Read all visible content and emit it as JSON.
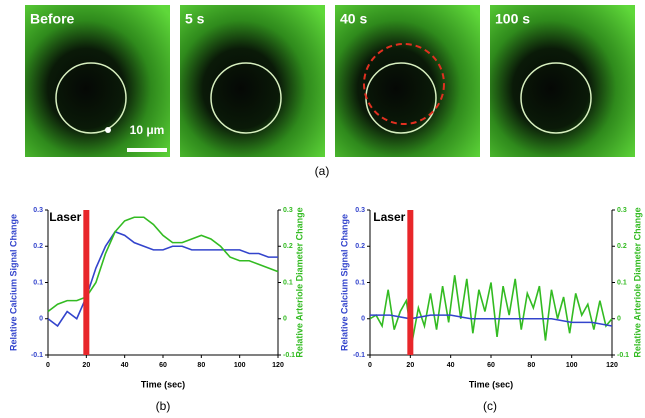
{
  "images": [
    {
      "label": "Before"
    },
    {
      "label": "5 s"
    },
    {
      "label": "40 s"
    },
    {
      "label": "100 s"
    }
  ],
  "scale_bar": "10 μm",
  "panel_a_label": "(a)",
  "chart_data": [
    {
      "type": "line",
      "panel_label": "(b)",
      "annotation": "Laser",
      "laser_x": 20,
      "xlabel": "Time (sec)",
      "ylabel": "Relative Calcium Signal Change",
      "y2label": "Relative Arteriole Diameter Change",
      "xlim": [
        0,
        120
      ],
      "xticks": [
        0,
        20,
        40,
        60,
        80,
        100,
        120
      ],
      "ylim": [
        -0.1,
        0.3
      ],
      "yticks": [
        -0.1,
        0,
        0.1,
        0.2,
        0.3
      ],
      "y2lim": [
        -0.1,
        0.3
      ],
      "y2ticks": [
        -0.1,
        0,
        0.1,
        0.2,
        0.3
      ],
      "series": [
        {
          "color": "#3344cc",
          "axis": "y",
          "x": [
            0,
            5,
            10,
            15,
            20,
            25,
            30,
            35,
            40,
            45,
            50,
            55,
            60,
            65,
            70,
            75,
            80,
            85,
            90,
            95,
            100,
            105,
            110,
            115,
            120
          ],
          "values": [
            0.0,
            -0.02,
            0.02,
            0.0,
            0.06,
            0.14,
            0.2,
            0.24,
            0.23,
            0.21,
            0.2,
            0.19,
            0.19,
            0.2,
            0.2,
            0.19,
            0.19,
            0.19,
            0.19,
            0.19,
            0.19,
            0.18,
            0.18,
            0.17,
            0.17
          ]
        },
        {
          "color": "#33bb22",
          "axis": "y2",
          "x": [
            0,
            5,
            10,
            15,
            20,
            25,
            30,
            35,
            40,
            45,
            50,
            55,
            60,
            65,
            70,
            75,
            80,
            85,
            90,
            95,
            100,
            105,
            110,
            115,
            120
          ],
          "values": [
            0.02,
            0.04,
            0.05,
            0.05,
            0.06,
            0.1,
            0.18,
            0.24,
            0.27,
            0.28,
            0.28,
            0.26,
            0.23,
            0.21,
            0.21,
            0.22,
            0.23,
            0.22,
            0.2,
            0.17,
            0.16,
            0.16,
            0.15,
            0.14,
            0.13
          ]
        }
      ]
    },
    {
      "type": "line",
      "panel_label": "(c)",
      "annotation": "Laser",
      "laser_x": 20,
      "xlabel": "Time (sec)",
      "ylabel": "Relative Calcium Signal Change",
      "y2label": "Relative Arteriole Diameter Change",
      "xlim": [
        0,
        120
      ],
      "xticks": [
        0,
        20,
        40,
        60,
        80,
        100,
        120
      ],
      "ylim": [
        -0.1,
        0.3
      ],
      "yticks": [
        -0.1,
        0,
        0.1,
        0.2,
        0.3
      ],
      "y2lim": [
        -0.1,
        0.3
      ],
      "y2ticks": [
        -0.1,
        0,
        0.1,
        0.2,
        0.3
      ],
      "series": [
        {
          "color": "#33bb22",
          "axis": "y2",
          "x": [
            0,
            3,
            6,
            9,
            12,
            15,
            18,
            21,
            24,
            27,
            30,
            33,
            36,
            39,
            42,
            45,
            48,
            51,
            54,
            57,
            60,
            63,
            66,
            69,
            72,
            75,
            78,
            81,
            84,
            87,
            90,
            93,
            96,
            99,
            102,
            105,
            108,
            111,
            114,
            117,
            120
          ],
          "values": [
            0.0,
            0.01,
            -0.02,
            0.08,
            -0.03,
            0.02,
            0.05,
            -0.06,
            0.03,
            -0.02,
            0.07,
            -0.03,
            0.09,
            -0.01,
            0.12,
            0.0,
            0.11,
            -0.04,
            0.08,
            0.02,
            0.1,
            -0.05,
            0.09,
            0.01,
            0.11,
            -0.03,
            0.07,
            0.03,
            0.09,
            -0.06,
            0.08,
            0.0,
            0.06,
            -0.04,
            0.07,
            0.01,
            0.04,
            -0.03,
            0.05,
            -0.02,
            0.0
          ]
        },
        {
          "color": "#3344cc",
          "axis": "y",
          "x": [
            0,
            10,
            20,
            30,
            40,
            50,
            60,
            70,
            80,
            90,
            100,
            110,
            120
          ],
          "values": [
            0.01,
            0.01,
            0.0,
            0.01,
            0.01,
            0.0,
            0.0,
            0.0,
            0.0,
            0.0,
            -0.01,
            -0.01,
            -0.02
          ]
        }
      ]
    }
  ]
}
